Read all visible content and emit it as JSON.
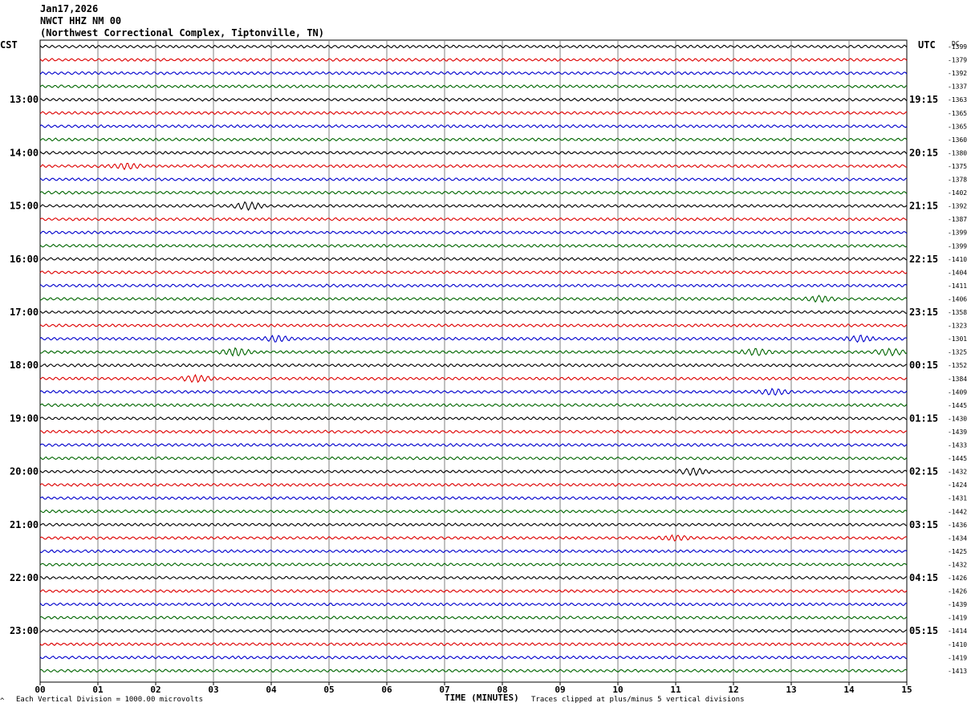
{
  "header": {
    "date": "Jan17,2026",
    "station": "NWCT HHZ NM 00",
    "location": "(Northwest Correctional Complex, Tiptonville, TN)"
  },
  "left_axis_label": "CST",
  "right_axis_label": "UTC",
  "dc_header": "DC",
  "footer": {
    "scale": "Each Vertical Division = 1000.00 microvolts",
    "xlabel": "TIME (MINUTES)",
    "clip": "Traces clipped at plus/minus 5 vertical divisions",
    "corner_mark": "^"
  },
  "colors": {
    "cycle": [
      "#000000",
      "#dd0000",
      "#0000cc",
      "#006600"
    ],
    "grid": "#808080"
  },
  "chart_data": {
    "type": "line",
    "title": "NWCT HHZ NM 00",
    "xlabel": "TIME (MINUTES)",
    "x_ticks": [
      "00",
      "01",
      "02",
      "03",
      "04",
      "05",
      "06",
      "07",
      "08",
      "09",
      "10",
      "11",
      "12",
      "13",
      "14",
      "15"
    ],
    "xlim": [
      0,
      15
    ],
    "left_hour_labels": [
      "13:00",
      "14:00",
      "15:00",
      "16:00",
      "17:00",
      "18:00",
      "19:00",
      "20:00",
      "21:00",
      "22:00",
      "23:00"
    ],
    "right_hour_labels": [
      "19:15",
      "20:15",
      "21:15",
      "22:15",
      "23:15",
      "00:15",
      "01:15",
      "02:15",
      "03:15",
      "04:15",
      "05:15"
    ],
    "dc_offsets": [
      -1399,
      -1379,
      -1392,
      -1337,
      -1363,
      -1365,
      -1365,
      -1360,
      -1380,
      -1375,
      -1378,
      -1402,
      -1392,
      -1387,
      -1399,
      -1399,
      -1410,
      -1404,
      -1411,
      -1406,
      -1358,
      -1323,
      -1301,
      -1325,
      -1352,
      -1384,
      -1409,
      -1445,
      -1430,
      -1439,
      -1433,
      -1445,
      -1432,
      -1424,
      -1431,
      -1442,
      -1436,
      -1434,
      -1425,
      -1432,
      -1426,
      -1426,
      -1439,
      -1419,
      -1414,
      -1410,
      -1419,
      -1413
    ],
    "events": [
      {
        "trace": 9,
        "minute": 1.5,
        "amp": 3
      },
      {
        "trace": 12,
        "minute": 3.6,
        "amp": 4
      },
      {
        "trace": 22,
        "minute": 4.1,
        "amp": 3
      },
      {
        "trace": 22,
        "minute": 14.2,
        "amp": 3
      },
      {
        "trace": 23,
        "minute": 3.4,
        "amp": 4
      },
      {
        "trace": 23,
        "minute": 12.4,
        "amp": 3.5
      },
      {
        "trace": 23,
        "minute": 14.7,
        "amp": 3.5
      },
      {
        "trace": 25,
        "minute": 2.7,
        "amp": 3.5
      },
      {
        "trace": 26,
        "minute": 12.7,
        "amp": 3
      },
      {
        "trace": 32,
        "minute": 11.3,
        "amp": 3.5
      },
      {
        "trace": 37,
        "minute": 11.0,
        "amp": 2.5
      },
      {
        "trace": 19,
        "minute": 13.5,
        "amp": 3
      }
    ]
  }
}
